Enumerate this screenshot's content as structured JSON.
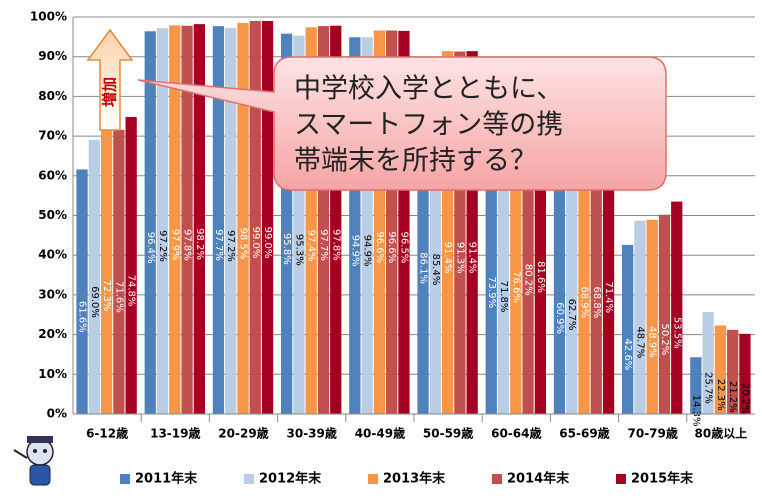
{
  "chart_data": {
    "type": "bar",
    "categories": [
      "6-12歳",
      "13-19歳",
      "20-29歳",
      "30-39歳",
      "40-49歳",
      "50-59歳",
      "60-64歳",
      "65-69歳",
      "70-79歳",
      "80歳以上"
    ],
    "series": [
      {
        "name": "2011年末",
        "color": "#4f81bd",
        "values": [
          61.6,
          96.4,
          97.7,
          95.8,
          94.9,
          86.1,
          73.9,
          60.9,
          42.6,
          14.3
        ],
        "value_labels": [
          "61.6%",
          "96.4%",
          "97.7%",
          "95.8%",
          "94.9%",
          "86.1%",
          "73.9%",
          "60.9%",
          "42.6%",
          "14.3%"
        ]
      },
      {
        "name": "2012年末",
        "color": "#b9cde5",
        "values": [
          69.0,
          97.2,
          97.2,
          95.3,
          94.9,
          85.4,
          71.8,
          62.7,
          48.7,
          25.7
        ],
        "value_labels": [
          "69.0%",
          "97.2%",
          "97.2%",
          "95.3%",
          "94.9%",
          "85.4%",
          "71.8%",
          "62.7%",
          "48.7%",
          "25.7%"
        ]
      },
      {
        "name": "2013年末",
        "color": "#f79646",
        "values": [
          72.3,
          97.9,
          98.5,
          97.4,
          96.6,
          91.4,
          76.6,
          68.9,
          48.9,
          22.3
        ],
        "value_labels": [
          "72.3%",
          "97.9%",
          "98.5%",
          "97.4%",
          "96.6%",
          "91.4%",
          "76.6%",
          "68.9%",
          "48.9%",
          "22.3%"
        ]
      },
      {
        "name": "2014年末",
        "color": "#c0504d",
        "values": [
          71.6,
          97.8,
          99.0,
          97.7,
          96.6,
          91.3,
          80.2,
          68.8,
          50.2,
          21.2
        ],
        "value_labels": [
          "71.6%",
          "97.8%",
          "99.0%",
          "97.7%",
          "96.6%",
          "91.3%",
          "80.2%",
          "68.8%",
          "50.2%",
          "21.2%"
        ]
      },
      {
        "name": "2015年末",
        "color": "#a50021",
        "values": [
          74.8,
          98.2,
          99.0,
          97.8,
          96.5,
          91.4,
          81.6,
          71.4,
          53.5,
          20.2
        ],
        "value_labels": [
          "74.8%",
          "98.2%",
          "99.0%",
          "97.8%",
          "96.5%",
          "91.4%",
          "81.6%",
          "71.4%",
          "53.5%",
          "20.2%"
        ]
      }
    ],
    "ylim": [
      0,
      100
    ],
    "yticks": [
      {
        "value": 0,
        "label": "0%"
      },
      {
        "value": 10,
        "label": "10%"
      },
      {
        "value": 20,
        "label": "20%"
      },
      {
        "value": 30,
        "label": "30%"
      },
      {
        "value": 40,
        "label": "40%"
      },
      {
        "value": 50,
        "label": "50%"
      },
      {
        "value": 60,
        "label": "60%"
      },
      {
        "value": 70,
        "label": "70%"
      },
      {
        "value": 80,
        "label": "80%"
      },
      {
        "value": 90,
        "label": "90%"
      },
      {
        "value": 100,
        "label": "100%"
      }
    ],
    "grid": true,
    "legend": "bottom",
    "annotations": {
      "arrow_label": "増加",
      "callout": [
        "中学校入学とともに、",
        "スマートフォン等の携",
        "帯端末を所持する？"
      ]
    }
  }
}
